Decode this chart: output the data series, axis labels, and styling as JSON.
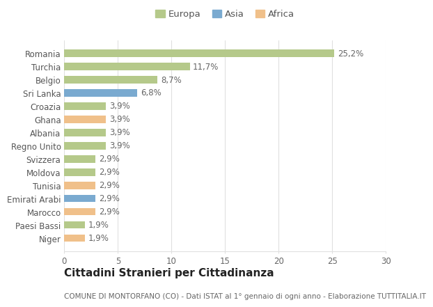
{
  "categories": [
    "Niger",
    "Paesi Bassi",
    "Marocco",
    "Emirati Arabi",
    "Tunisia",
    "Moldova",
    "Svizzera",
    "Regno Unito",
    "Albania",
    "Ghana",
    "Croazia",
    "Sri Lanka",
    "Belgio",
    "Turchia",
    "Romania"
  ],
  "values": [
    1.9,
    1.9,
    2.9,
    2.9,
    2.9,
    2.9,
    2.9,
    3.9,
    3.9,
    3.9,
    3.9,
    6.8,
    8.7,
    11.7,
    25.2
  ],
  "labels": [
    "1,9%",
    "1,9%",
    "2,9%",
    "2,9%",
    "2,9%",
    "2,9%",
    "2,9%",
    "3,9%",
    "3,9%",
    "3,9%",
    "3,9%",
    "6,8%",
    "8,7%",
    "11,7%",
    "25,2%"
  ],
  "colors": [
    "#f0c08a",
    "#b5c98a",
    "#f0c08a",
    "#7aaad0",
    "#f0c08a",
    "#b5c98a",
    "#b5c98a",
    "#b5c98a",
    "#b5c98a",
    "#f0c08a",
    "#b5c98a",
    "#7aaad0",
    "#b5c98a",
    "#b5c98a",
    "#b5c98a"
  ],
  "legend_labels": [
    "Europa",
    "Asia",
    "Africa"
  ],
  "legend_colors": [
    "#b5c98a",
    "#7aaad0",
    "#f0c08a"
  ],
  "xlim": [
    0,
    30
  ],
  "xticks": [
    0,
    5,
    10,
    15,
    20,
    25,
    30
  ],
  "title": "Cittadini Stranieri per Cittadinanza",
  "subtitle": "COMUNE DI MONTORFANO (CO) - Dati ISTAT al 1° gennaio di ogni anno - Elaborazione TUTTITALIA.IT",
  "background_color": "#ffffff",
  "grid_color": "#e0e0e0",
  "bar_height": 0.55,
  "label_fontsize": 8.5,
  "tick_fontsize": 8.5,
  "title_fontsize": 11,
  "subtitle_fontsize": 7.5,
  "legend_fontsize": 9.5
}
